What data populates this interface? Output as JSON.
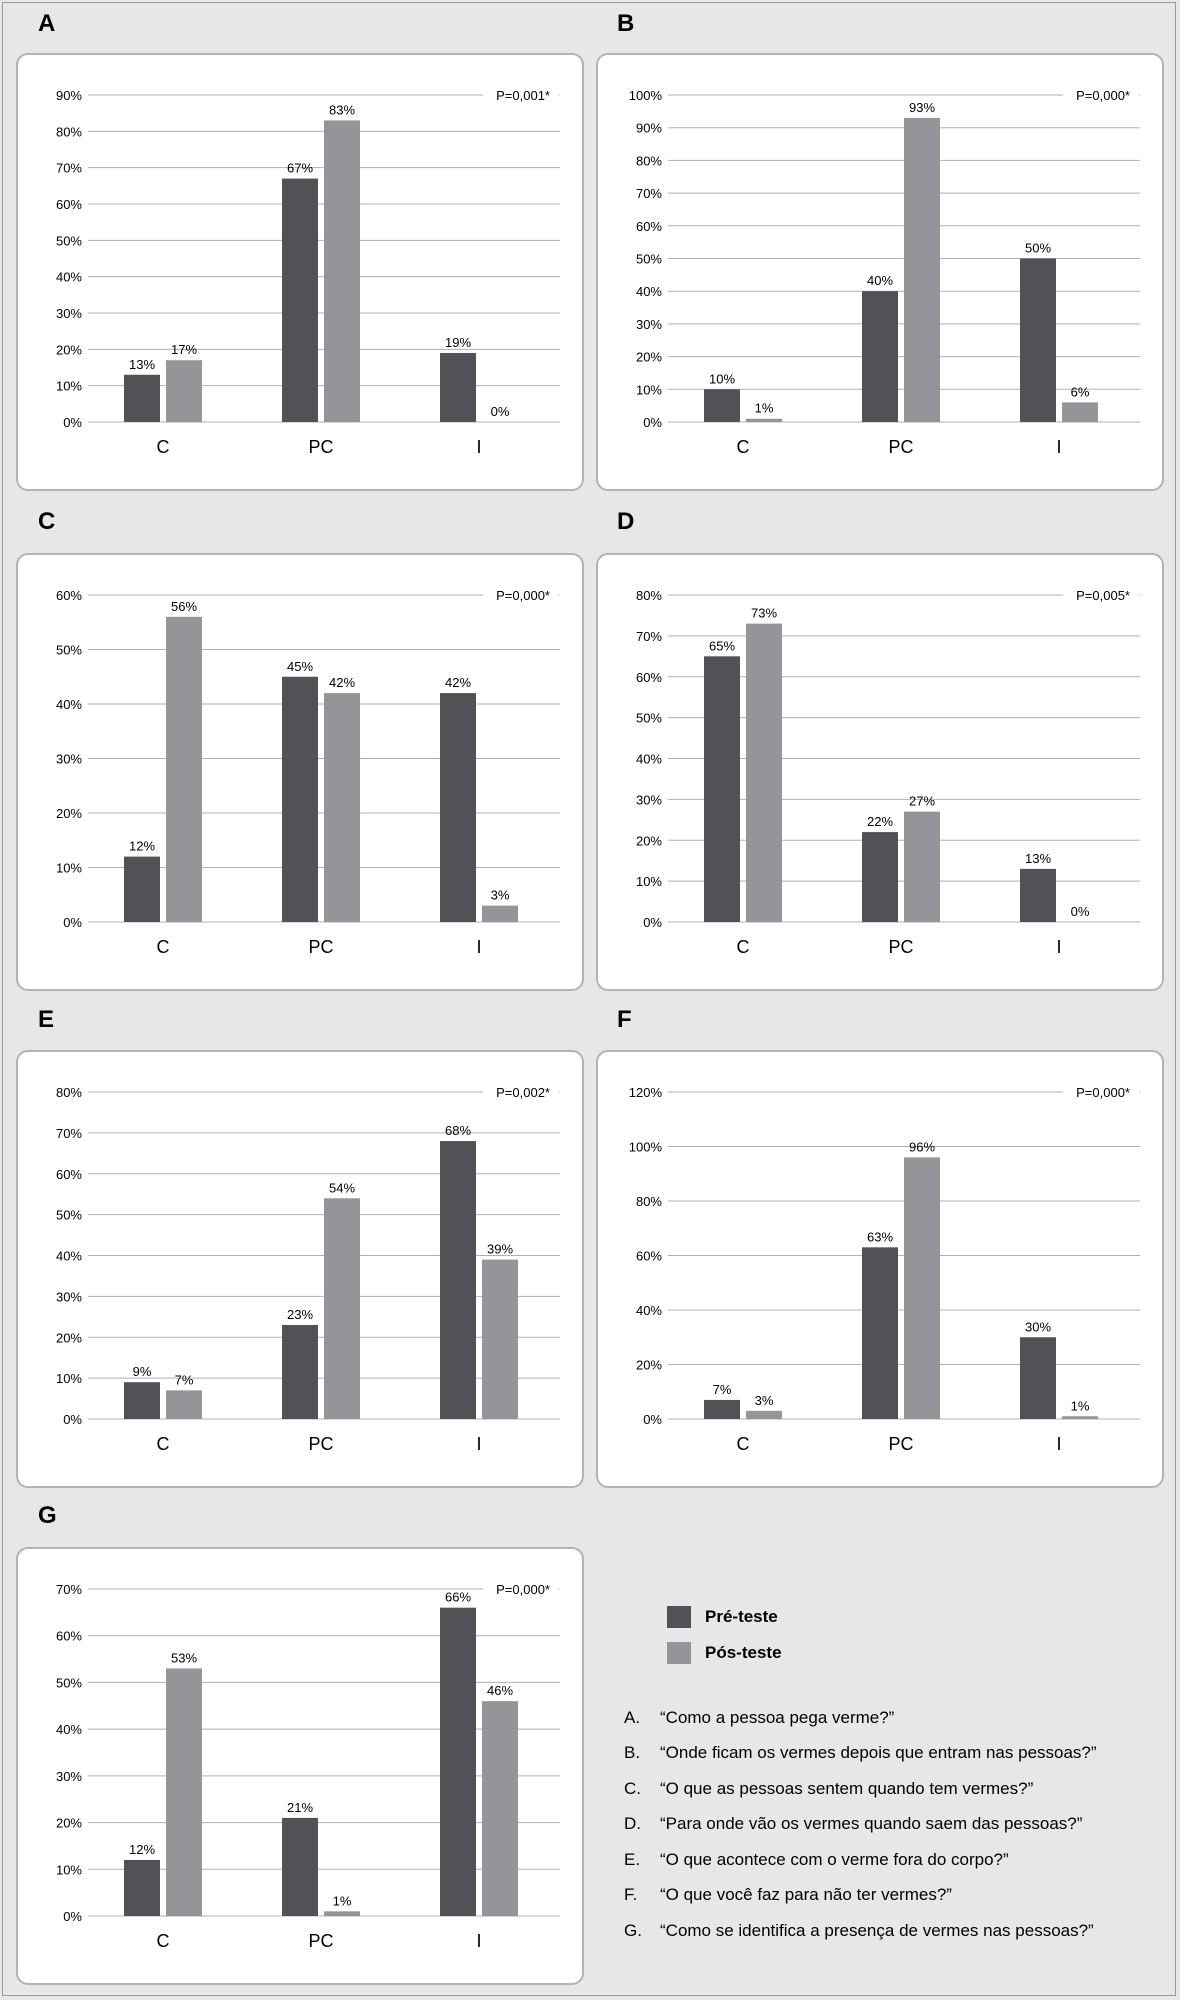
{
  "colors": {
    "pre": "#515256",
    "post": "#939598",
    "grid": "#b0b0b0",
    "panel_border": "#b3b3b3"
  },
  "legend": {
    "pre_label": "Pré-teste",
    "post_label": "Pós-teste"
  },
  "questions": [
    {
      "letter": "A.",
      "text": "“Como a pessoa pega verme?”"
    },
    {
      "letter": "B.",
      "text": "“Onde ficam os vermes depois que entram nas pessoas?”"
    },
    {
      "letter": "C.",
      "text": "“O que as pessoas sentem quando tem vermes?”"
    },
    {
      "letter": "D.",
      "text": "“Para onde vão os vermes quando saem das pessoas?”"
    },
    {
      "letter": "E.",
      "text": "“O que acontece com o verme fora do corpo?”"
    },
    {
      "letter": "F.",
      "text": "“O que você faz para não ter vermes?”"
    },
    {
      "letter": "G.",
      "text": "“Como se identifica a presença de vermes nas pessoas?”"
    }
  ],
  "chart_data": [
    {
      "panel": "A",
      "type": "bar",
      "categories": [
        "C",
        "PC",
        "I"
      ],
      "ylim": [
        0,
        90
      ],
      "ticks": [
        0,
        10,
        20,
        30,
        40,
        50,
        60,
        70,
        80,
        90
      ],
      "pvalue": "P=0,001*",
      "series": [
        {
          "name": "Pré-teste",
          "values": [
            13,
            67,
            19
          ]
        },
        {
          "name": "Pós-teste",
          "values": [
            17,
            83,
            0
          ]
        }
      ]
    },
    {
      "panel": "B",
      "type": "bar",
      "categories": [
        "C",
        "PC",
        "I"
      ],
      "ylim": [
        0,
        100
      ],
      "ticks": [
        0,
        10,
        20,
        30,
        40,
        50,
        60,
        70,
        80,
        90,
        100
      ],
      "pvalue": "P=0,000*",
      "series": [
        {
          "name": "Pré-teste",
          "values": [
            10,
            40,
            50
          ]
        },
        {
          "name": "Pós-teste",
          "values": [
            1,
            93,
            6
          ]
        }
      ]
    },
    {
      "panel": "C",
      "type": "bar",
      "categories": [
        "C",
        "PC",
        "I"
      ],
      "ylim": [
        0,
        60
      ],
      "ticks": [
        0,
        10,
        20,
        30,
        40,
        50,
        60
      ],
      "pvalue": "P=0,000*",
      "series": [
        {
          "name": "Pré-teste",
          "values": [
            12,
            45,
            42
          ]
        },
        {
          "name": "Pós-teste",
          "values": [
            56,
            42,
            3
          ]
        }
      ]
    },
    {
      "panel": "D",
      "type": "bar",
      "categories": [
        "C",
        "PC",
        "I"
      ],
      "ylim": [
        0,
        80
      ],
      "ticks": [
        0,
        10,
        20,
        30,
        40,
        50,
        60,
        70,
        80
      ],
      "pvalue": "P=0,005*",
      "series": [
        {
          "name": "Pré-teste",
          "values": [
            65,
            22,
            13
          ]
        },
        {
          "name": "Pós-teste",
          "values": [
            73,
            27,
            0
          ]
        }
      ]
    },
    {
      "panel": "E",
      "type": "bar",
      "categories": [
        "C",
        "PC",
        "I"
      ],
      "ylim": [
        0,
        80
      ],
      "ticks": [
        0,
        10,
        20,
        30,
        40,
        50,
        60,
        70,
        80
      ],
      "pvalue": "P=0,002*",
      "series": [
        {
          "name": "Pré-teste",
          "values": [
            9,
            23,
            68
          ]
        },
        {
          "name": "Pós-teste",
          "values": [
            7,
            54,
            39
          ]
        }
      ]
    },
    {
      "panel": "F",
      "type": "bar",
      "categories": [
        "C",
        "PC",
        "I"
      ],
      "ylim": [
        0,
        120
      ],
      "ticks": [
        0,
        20,
        40,
        60,
        80,
        100,
        120
      ],
      "pvalue": "P=0,000*",
      "series": [
        {
          "name": "Pré-teste",
          "values": [
            7,
            63,
            30
          ]
        },
        {
          "name": "Pós-teste",
          "values": [
            3,
            96,
            1
          ]
        }
      ]
    },
    {
      "panel": "G",
      "type": "bar",
      "categories": [
        "C",
        "PC",
        "I"
      ],
      "ylim": [
        0,
        70
      ],
      "ticks": [
        0,
        10,
        20,
        30,
        40,
        50,
        60,
        70
      ],
      "pvalue": "P=0,000*",
      "series": [
        {
          "name": "Pré-teste",
          "values": [
            12,
            21,
            66
          ]
        },
        {
          "name": "Pós-teste",
          "values": [
            53,
            1,
            46
          ]
        }
      ]
    }
  ]
}
